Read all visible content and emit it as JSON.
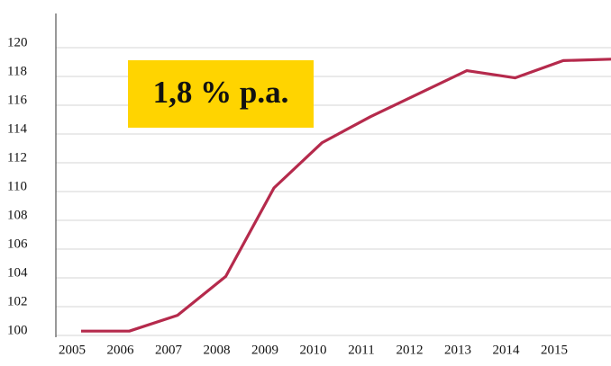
{
  "chart_data": {
    "type": "line",
    "annotation": "1,8 % p.a.",
    "categories": [
      "2005",
      "2006",
      "2007",
      "2008",
      "2009",
      "2010",
      "2011",
      "2012",
      "2013",
      "2014",
      "2015",
      null
    ],
    "values": [
      100.3,
      100.3,
      101.4,
      104.1,
      110.25,
      113.4,
      115.2,
      116.8,
      118.4,
      117.9,
      119.1,
      119.2
    ],
    "color": "#b52a4c",
    "ylim": [
      100,
      122
    ],
    "yticks": [
      100,
      102,
      104,
      106,
      108,
      110,
      112,
      114,
      116,
      118,
      120
    ],
    "grid": true
  }
}
